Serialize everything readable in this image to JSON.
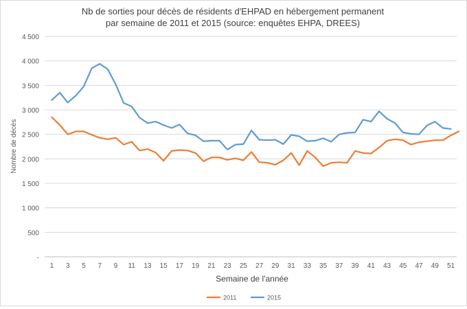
{
  "chart_data": {
    "type": "line",
    "title_line1": "Nb de sorties pour décès de résidents d'EHPAD en hébergement permanent",
    "title_line2": "par semaine de 2011 et 2015 (source: enquêtes EHPA, DREES)",
    "xlabel": "Semaine de l'année",
    "ylabel": "Nombre de décès",
    "ylim": [
      0,
      4500
    ],
    "yticks": [
      0,
      500,
      1000,
      1500,
      2000,
      2500,
      3000,
      3500,
      4000,
      4500
    ],
    "ytick_labels": [
      "-",
      "500",
      "1 000",
      "1 500",
      "2 000",
      "2 500",
      "3 000",
      "3 500",
      "4 000",
      "4 500"
    ],
    "xlim": [
      1,
      52
    ],
    "xticks": [
      1,
      3,
      5,
      7,
      9,
      11,
      13,
      15,
      17,
      19,
      21,
      23,
      25,
      27,
      29,
      31,
      33,
      35,
      37,
      39,
      41,
      43,
      45,
      47,
      49,
      51
    ],
    "grid": true,
    "legend_position": "bottom",
    "series": [
      {
        "name": "2011",
        "color": "#ed7d31",
        "x": [
          1,
          2,
          3,
          4,
          5,
          6,
          7,
          8,
          9,
          10,
          11,
          12,
          13,
          14,
          15,
          16,
          17,
          18,
          19,
          20,
          21,
          22,
          23,
          24,
          25,
          26,
          27,
          28,
          29,
          30,
          31,
          32,
          33,
          34,
          35,
          36,
          37,
          38,
          39,
          40,
          41,
          42,
          43,
          44,
          45,
          46,
          47,
          48,
          49,
          50,
          51,
          52
        ],
        "values": [
          2850,
          2690,
          2500,
          2560,
          2560,
          2490,
          2430,
          2400,
          2430,
          2290,
          2350,
          2170,
          2200,
          2130,
          1960,
          2160,
          2180,
          2170,
          2120,
          1950,
          2030,
          2030,
          1980,
          2010,
          1970,
          2140,
          1930,
          1920,
          1880,
          1970,
          2120,
          1870,
          2160,
          2030,
          1850,
          1920,
          1930,
          1920,
          2160,
          2120,
          2110,
          2230,
          2370,
          2400,
          2380,
          2290,
          2340,
          2360,
          2380,
          2380,
          2480,
          2560
        ]
      },
      {
        "name": "2015",
        "color": "#5b9bd5",
        "x": [
          1,
          2,
          3,
          4,
          5,
          6,
          7,
          8,
          9,
          10,
          11,
          12,
          13,
          14,
          15,
          16,
          17,
          18,
          19,
          20,
          21,
          22,
          23,
          24,
          25,
          26,
          27,
          28,
          29,
          30,
          31,
          32,
          33,
          34,
          35,
          36,
          37,
          38,
          39,
          40,
          41,
          42,
          43,
          44,
          45,
          46,
          47,
          48,
          49,
          50,
          51
        ],
        "values": [
          3200,
          3350,
          3150,
          3290,
          3480,
          3850,
          3940,
          3830,
          3520,
          3140,
          3070,
          2840,
          2730,
          2760,
          2690,
          2630,
          2700,
          2520,
          2480,
          2360,
          2370,
          2370,
          2190,
          2290,
          2300,
          2580,
          2390,
          2380,
          2390,
          2300,
          2490,
          2460,
          2360,
          2370,
          2420,
          2350,
          2500,
          2530,
          2540,
          2800,
          2760,
          2970,
          2820,
          2730,
          2540,
          2510,
          2500,
          2680,
          2760,
          2630,
          2610
        ]
      }
    ]
  }
}
